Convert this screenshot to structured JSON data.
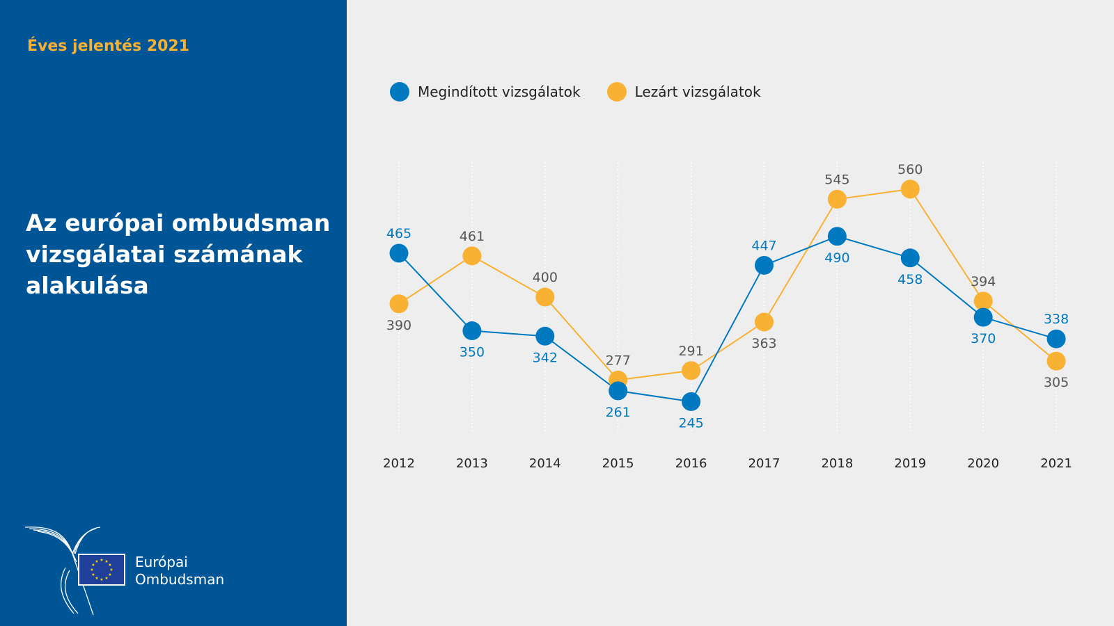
{
  "header": {
    "report": "Éves jelentés 2021",
    "title": "Az európai ombudsman vizsgálatai számának alakulása"
  },
  "logo": {
    "line1": "Európai",
    "line2": "Ombudsman"
  },
  "colors": {
    "panel": "#005596",
    "opened": "#0079c1",
    "closed": "#f8b133",
    "label_closed": "#555555"
  },
  "chart_data": {
    "type": "line",
    "categories": [
      "2012",
      "2013",
      "2014",
      "2015",
      "2016",
      "2017",
      "2018",
      "2019",
      "2020",
      "2021"
    ],
    "series": [
      {
        "name": "Megindított vizsgálatok",
        "values": [
          465,
          350,
          342,
          261,
          245,
          447,
          490,
          458,
          370,
          338
        ],
        "color": "#0079c1"
      },
      {
        "name": "Lezárt vizsgálatok",
        "values": [
          390,
          461,
          400,
          277,
          291,
          363,
          545,
          560,
          394,
          305
        ],
        "color": "#f8b133"
      }
    ],
    "legend": "top-left",
    "grid": "vertical dotted"
  }
}
